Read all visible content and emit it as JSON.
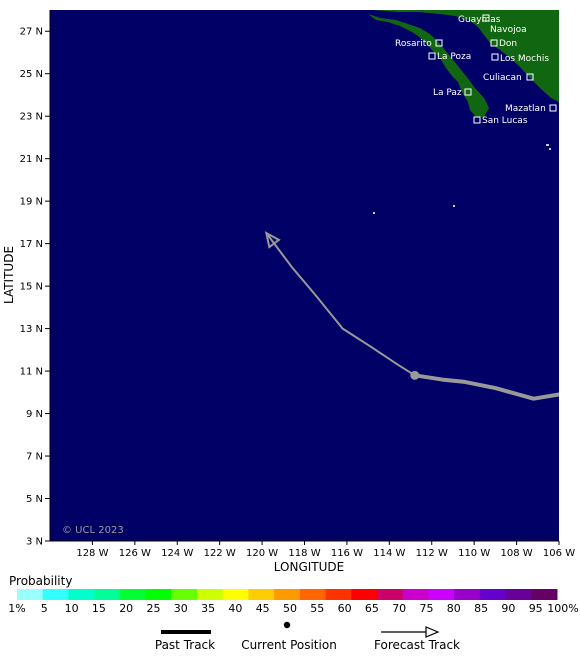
{
  "map": {
    "ocean_color": "#000066",
    "land_color": "#116611",
    "x_axis_label": "LONGITUDE",
    "y_axis_label": "LATITUDE",
    "copyright": "© UCL 2023",
    "lat_ticks": [
      "27 N",
      "25 N",
      "23 N",
      "21 N",
      "19 N",
      "17 N",
      "15 N",
      "13 N",
      "11 N",
      "9 N",
      "7 N",
      "5 N",
      "3 N"
    ],
    "lon_ticks": [
      "128 W",
      "126 W",
      "124 W",
      "122 W",
      "120 W",
      "118 W",
      "116 W",
      "114 W",
      "112 W",
      "110 W",
      "108 W",
      "106 W"
    ],
    "places": [
      {
        "name": "Guaymas"
      },
      {
        "name": "Navojoa"
      },
      {
        "name": "Rosarito"
      },
      {
        "name": "Don"
      },
      {
        "name": "La Poza"
      },
      {
        "name": "Los Mochis"
      },
      {
        "name": "Culiacan"
      },
      {
        "name": "La Paz"
      },
      {
        "name": "Mazatlan"
      },
      {
        "name": "San Lucas"
      }
    ]
  },
  "track": {
    "color": "#999999",
    "past_track_lonlat": [
      [
        -106.0,
        9.9
      ],
      [
        -107.2,
        9.7
      ],
      [
        -109.0,
        10.2
      ],
      [
        -110.5,
        10.5
      ],
      [
        -111.5,
        10.6
      ],
      [
        -112.8,
        10.8
      ]
    ],
    "current_position_lonlat": [
      -112.8,
      10.8
    ],
    "forecast_track_lonlat": [
      [
        -112.8,
        10.8
      ],
      [
        -113.6,
        11.3
      ],
      [
        -114.8,
        12.1
      ],
      [
        -116.2,
        13.0
      ],
      [
        -117.5,
        14.6
      ],
      [
        -118.6,
        15.9
      ],
      [
        -119.8,
        17.5
      ]
    ]
  },
  "legend": {
    "probability_title": "Probability",
    "probability_labels": [
      "1%",
      "5",
      "10",
      "15",
      "20",
      "25",
      "30",
      "35",
      "40",
      "45",
      "50",
      "55",
      "60",
      "65",
      "70",
      "75",
      "80",
      "85",
      "90",
      "95",
      "100%"
    ],
    "probability_colors": [
      "#99ffff",
      "#33ffff",
      "#00ffcc",
      "#00ff99",
      "#00ff33",
      "#00ff00",
      "#66ff00",
      "#ccff00",
      "#ffff00",
      "#ffcc00",
      "#ff9900",
      "#ff6600",
      "#ff3300",
      "#ff0000",
      "#cc0066",
      "#cc00cc",
      "#cc00ff",
      "#9900cc",
      "#6600cc",
      "#660099",
      "#660066"
    ],
    "past_track_label": "Past Track",
    "current_position_label": "Current Position",
    "forecast_track_label": "Forecast Track"
  }
}
